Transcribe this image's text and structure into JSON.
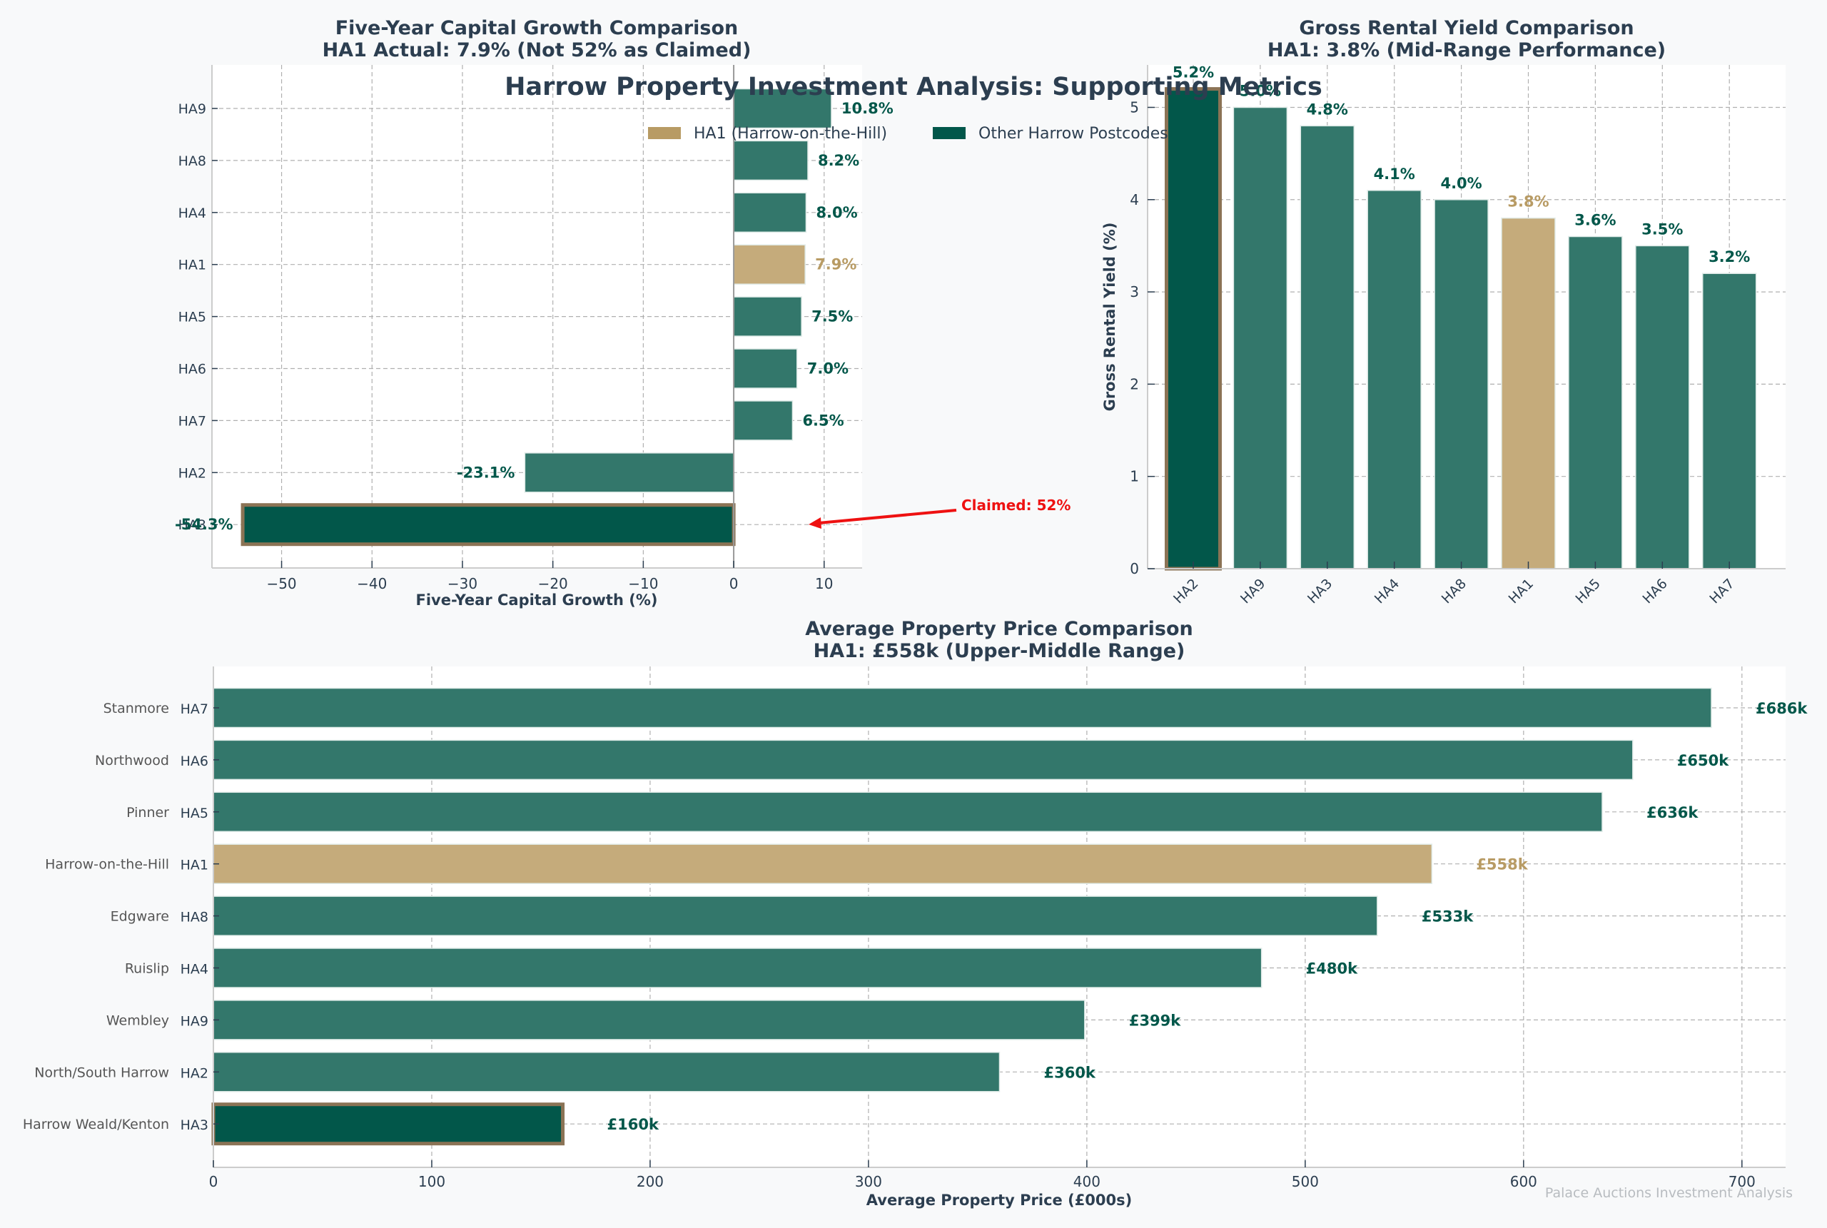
{
  "figure": {
    "title": "Harrow Property Investment Analysis: Supporting Metrics",
    "watermark": "Palace Auctions Investment Analysis",
    "legend": {
      "placement": "top-center",
      "items": [
        {
          "label": "HA1 (Harrow-on-the-Hill)",
          "color": "#b89b64"
        },
        {
          "label": "Other Harrow Postcodes",
          "color": "#02574a"
        }
      ]
    },
    "colors": {
      "highlight": "#c5ab7b",
      "highlight_text": "#b89b64",
      "bar": "#33776b",
      "bar_emphasis": "#02574a",
      "emphasis_edge": "#8b7355",
      "value_text": "#02574a",
      "annotation": "#ee1111",
      "title_text": "#2c3e50",
      "background": "#f8f9fa"
    }
  },
  "chart_data": [
    {
      "id": "growth",
      "type": "bar",
      "orientation": "horizontal",
      "title": "Five-Year Capital Growth Comparison",
      "subtitle": "HA1 Actual: 7.9% (Not 52% as Claimed)",
      "xlabel": "Five-Year Capital Growth (%)",
      "ylabel": "",
      "categories": [
        "HA9",
        "HA8",
        "HA4",
        "HA1",
        "HA5",
        "HA6",
        "HA7",
        "HA2",
        "HA3"
      ],
      "values": [
        10.8,
        8.2,
        8.0,
        7.9,
        7.5,
        7.0,
        6.5,
        -23.1,
        -54.3
      ],
      "labels": [
        "10.8%",
        "8.2%",
        "8.0%",
        "7.9%",
        "7.5%",
        "7.0%",
        "6.5%",
        "-23.1%",
        "-54.3%"
      ],
      "highlight": "HA1",
      "emphasis": "HA3",
      "xlim": [
        -57.7,
        14.2
      ],
      "xticks": [
        -50,
        -40,
        -30,
        -20,
        -10,
        0,
        10
      ],
      "xtick_labels": [
        "−50",
        "−40",
        "−30",
        "−20",
        "−10",
        "0",
        "10"
      ],
      "grid": true,
      "annotation": {
        "text": "Claimed: 52%",
        "target_category": "HA3"
      }
    },
    {
      "id": "yield",
      "type": "bar",
      "orientation": "vertical",
      "title": "Gross Rental Yield Comparison",
      "subtitle": "HA1: 3.8% (Mid-Range Performance)",
      "xlabel": "",
      "ylabel": "Gross Rental Yield (%)",
      "categories": [
        "HA2",
        "HA9",
        "HA3",
        "HA4",
        "HA8",
        "HA1",
        "HA5",
        "HA6",
        "HA7"
      ],
      "values": [
        5.2,
        5.0,
        4.8,
        4.1,
        4.0,
        3.8,
        3.6,
        3.5,
        3.2
      ],
      "labels": [
        "5.2%",
        "5.0%",
        "4.8%",
        "4.1%",
        "4.0%",
        "3.8%",
        "3.6%",
        "3.5%",
        "3.2%"
      ],
      "highlight": "HA1",
      "emphasis": "HA2",
      "ylim": [
        0,
        5.46
      ],
      "yticks": [
        0,
        1,
        2,
        3,
        4,
        5
      ],
      "ytick_labels": [
        "0",
        "1",
        "2",
        "3",
        "4",
        "5"
      ],
      "grid": true
    },
    {
      "id": "price",
      "type": "bar",
      "orientation": "horizontal",
      "title": "Average Property Price Comparison",
      "subtitle": "HA1: £558k (Upper-Middle Range)",
      "xlabel": "Average Property Price (£000s)",
      "ylabel": "",
      "categories": [
        "HA7",
        "HA6",
        "HA5",
        "HA1",
        "HA8",
        "HA4",
        "HA9",
        "HA2",
        "HA3"
      ],
      "locations": [
        "Stanmore",
        "Northwood",
        "Pinner",
        "Harrow-on-the-Hill",
        "Edgware",
        "Ruislip",
        "Wembley",
        "North/South Harrow",
        "Harrow Weald/Kenton"
      ],
      "values": [
        686,
        650,
        636,
        558,
        533,
        480,
        399,
        360,
        160
      ],
      "labels": [
        "£686k",
        "£650k",
        "£636k",
        "£558k",
        "£533k",
        "£480k",
        "£399k",
        "£360k",
        "£160k"
      ],
      "highlight": "HA1",
      "emphasis": "HA3",
      "xlim": [
        0,
        720
      ],
      "xticks": [
        0,
        100,
        200,
        300,
        400,
        500,
        600,
        700
      ],
      "xtick_labels": [
        "0",
        "100",
        "200",
        "300",
        "400",
        "500",
        "600",
        "700"
      ],
      "grid": true
    }
  ]
}
